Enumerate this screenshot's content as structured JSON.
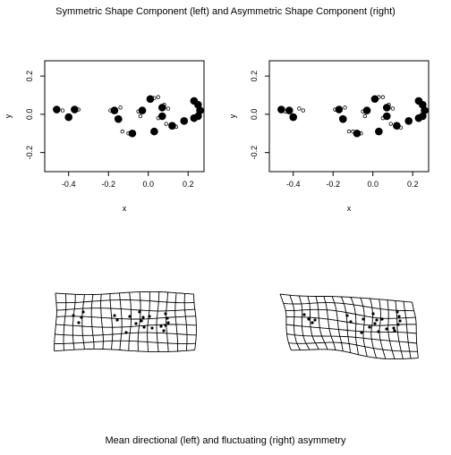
{
  "page": {
    "title": "Symmetric Shape Component (left) and Asymmetric Shape Component (right)",
    "caption": "Mean directional (left) and fluctuating (right) asymmetry"
  },
  "chart_data": [
    {
      "type": "scatter",
      "title": "",
      "xlabel": "x",
      "ylabel": "y",
      "xlim": [
        -0.52,
        0.28
      ],
      "ylim": [
        -0.3,
        0.28
      ],
      "xticks": [
        "-0.4",
        "-0.2",
        "0.0",
        "0.2"
      ],
      "yticks": [
        "-0.2",
        "0.0",
        "0.2"
      ],
      "grid": false,
      "series": [
        {
          "role": "consensus",
          "points": [
            [
              -0.46,
              0.025
            ],
            [
              -0.37,
              0.025
            ],
            [
              -0.4,
              -0.015
            ],
            [
              -0.17,
              0.02
            ],
            [
              -0.15,
              -0.025
            ],
            [
              -0.08,
              -0.1
            ],
            [
              -0.03,
              0.02
            ],
            [
              0.01,
              0.08
            ],
            [
              0.07,
              0.035
            ],
            [
              0.07,
              -0.01
            ],
            [
              0.03,
              -0.09
            ],
            [
              0.12,
              -0.06
            ],
            [
              0.18,
              -0.035
            ],
            [
              0.23,
              0.07
            ],
            [
              0.25,
              0.05
            ],
            [
              0.26,
              0.02
            ],
            [
              0.25,
              -0.01
            ],
            [
              0.23,
              -0.02
            ]
          ]
        },
        {
          "role": "individuals",
          "points": [
            [
              -0.35,
              0.025
            ],
            [
              -0.43,
              0.02
            ],
            [
              -0.19,
              0.02
            ],
            [
              -0.14,
              0.035
            ],
            [
              -0.16,
              -0.02
            ],
            [
              -0.1,
              -0.1
            ],
            [
              -0.05,
              0.015
            ],
            [
              0.03,
              0.085
            ],
            [
              0.05,
              0.09
            ],
            [
              0.08,
              0.05
            ],
            [
              0.1,
              0.03
            ],
            [
              0.05,
              -0.02
            ],
            [
              -0.04,
              -0.01
            ],
            [
              0.09,
              -0.05
            ],
            [
              0.14,
              -0.065
            ],
            [
              -0.13,
              -0.09
            ]
          ]
        }
      ]
    },
    {
      "type": "scatter",
      "title": "",
      "xlabel": "x",
      "ylabel": "y",
      "xlim": [
        -0.52,
        0.28
      ],
      "ylim": [
        -0.3,
        0.28
      ],
      "xticks": [
        "-0.4",
        "-0.2",
        "0.0",
        "0.2"
      ],
      "yticks": [
        "-0.2",
        "0.0",
        "0.2"
      ],
      "grid": false,
      "series": [
        {
          "role": "consensus",
          "points": [
            [
              -0.46,
              0.025
            ],
            [
              -0.42,
              0.02
            ],
            [
              -0.4,
              -0.015
            ],
            [
              -0.17,
              0.025
            ],
            [
              -0.15,
              -0.025
            ],
            [
              -0.08,
              -0.1
            ],
            [
              -0.03,
              0.02
            ],
            [
              0.01,
              0.08
            ],
            [
              0.07,
              0.035
            ],
            [
              0.07,
              -0.01
            ],
            [
              0.03,
              -0.09
            ],
            [
              0.12,
              -0.06
            ],
            [
              0.18,
              -0.035
            ],
            [
              0.23,
              0.07
            ],
            [
              0.25,
              0.05
            ],
            [
              0.26,
              0.02
            ],
            [
              0.25,
              -0.01
            ],
            [
              0.23,
              -0.02
            ]
          ]
        },
        {
          "role": "individuals",
          "points": [
            [
              -0.35,
              0.02
            ],
            [
              -0.44,
              0.015
            ],
            [
              -0.37,
              0.03
            ],
            [
              -0.19,
              0.025
            ],
            [
              -0.14,
              0.035
            ],
            [
              -0.16,
              -0.02
            ],
            [
              -0.1,
              -0.09
            ],
            [
              -0.06,
              -0.1
            ],
            [
              -0.05,
              0.015
            ],
            [
              0.03,
              0.09
            ],
            [
              0.05,
              0.09
            ],
            [
              0.08,
              0.05
            ],
            [
              0.1,
              0.03
            ],
            [
              0.05,
              -0.02
            ],
            [
              -0.04,
              -0.01
            ],
            [
              0.09,
              -0.05
            ],
            [
              0.14,
              -0.07
            ],
            [
              -0.12,
              -0.09
            ]
          ]
        }
      ]
    }
  ],
  "grids": [
    {
      "name": "directional-asymmetry-grid",
      "cols": 15,
      "rows": 7,
      "corners": [
        [
          62,
          328
        ],
        [
          218,
          328
        ],
        [
          218,
          392
        ],
        [
          62,
          392
        ]
      ],
      "landmarks": [
        [
          82,
          353
        ],
        [
          91,
          355
        ],
        [
          93,
          349
        ],
        [
          88,
          361
        ],
        [
          128,
          353
        ],
        [
          131,
          358
        ],
        [
          141,
          372
        ],
        [
          145,
          354
        ],
        [
          152,
          362
        ],
        [
          156,
          349
        ],
        [
          161,
          366
        ],
        [
          167,
          354
        ],
        [
          170,
          367
        ],
        [
          180,
          365
        ],
        [
          185,
          351
        ],
        [
          187,
          356
        ],
        [
          188,
          361
        ],
        [
          185,
          364
        ],
        [
          183,
          370
        ],
        [
          160,
          355
        ],
        [
          158,
          359
        ]
      ]
    },
    {
      "name": "fluctuating-asymmetry-grid",
      "cols": 15,
      "rows": 7,
      "corners": [
        [
          313,
          328
        ],
        [
          462,
          338
        ],
        [
          467,
          402
        ],
        [
          326,
          390
        ]
      ],
      "landmarks": [
        [
          340,
          352
        ],
        [
          345,
          357
        ],
        [
          352,
          358
        ],
        [
          349,
          361
        ],
        [
          388,
          353
        ],
        [
          392,
          360
        ],
        [
          404,
          372
        ],
        [
          406,
          357
        ],
        [
          413,
          366
        ],
        [
          417,
          351
        ],
        [
          423,
          371
        ],
        [
          427,
          357
        ],
        [
          432,
          368
        ],
        [
          440,
          367
        ],
        [
          444,
          349
        ],
        [
          446,
          354
        ],
        [
          447,
          359
        ],
        [
          445,
          363
        ],
        [
          441,
          370
        ],
        [
          421,
          358
        ],
        [
          419,
          362
        ]
      ]
    }
  ]
}
